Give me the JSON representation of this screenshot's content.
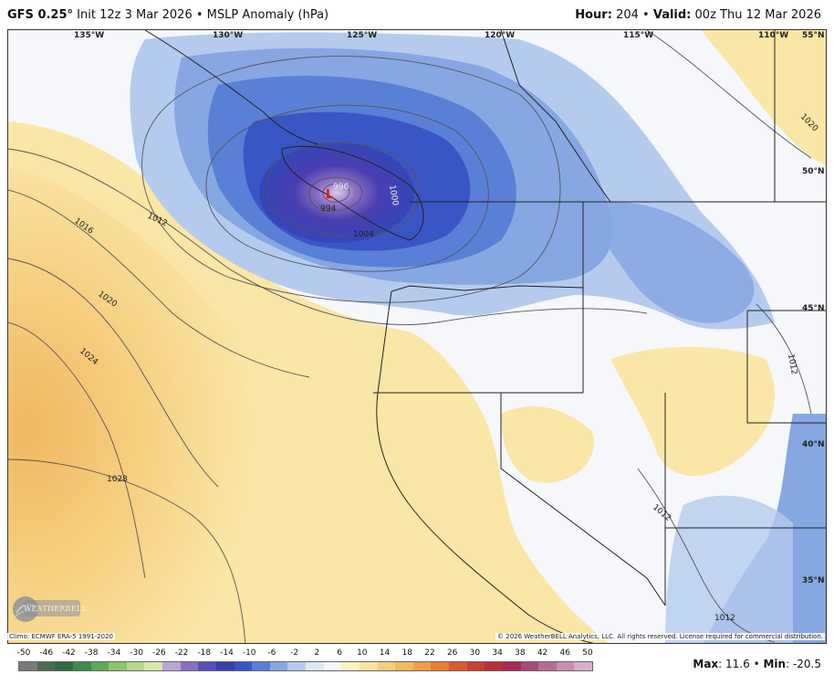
{
  "header": {
    "model": "GFS 0.25°",
    "init": "Init 12z 3 Mar 2026",
    "bullet": "•",
    "product": "MSLP Anomaly (hPa)",
    "hour_label": "Hour:",
    "hour_value": "204",
    "valid_label": "Valid:",
    "valid_value": "00z Thu 12 Mar 2026"
  },
  "map": {
    "lon_labels": [
      "135°W",
      "130°W",
      "125°W",
      "120°W",
      "115°W",
      "110°W"
    ],
    "lat_labels": [
      "55°N",
      "50°N",
      "45°N",
      "40°N",
      "35°N"
    ],
    "isobar_labels": [
      "1016",
      "1012",
      "1020",
      "1024",
      "1028",
      "1004",
      "994",
      "996",
      "1000",
      "1020",
      "1012",
      "1012",
      "1012"
    ],
    "low_marker": "L"
  },
  "credits": {
    "climo": "Climo: ECMWF ERA-5 1991-2020",
    "copyright": "© 2026 WeatherBELL Analytics, LLC. All rights reserved. License required for commercial distribution.",
    "logo_text": "WEATHERBELL"
  },
  "colorbar": {
    "ticks": [
      "-50",
      "-46",
      "-42",
      "-38",
      "-34",
      "-30",
      "-26",
      "-22",
      "-18",
      "-14",
      "-10",
      "-6",
      "-2",
      "2",
      "6",
      "10",
      "14",
      "18",
      "22",
      "26",
      "30",
      "34",
      "38",
      "42",
      "46",
      "50"
    ],
    "colors": [
      "#7a7a7a",
      "#4d6b52",
      "#2f6b3f",
      "#3f8a4a",
      "#5fa85a",
      "#8cc46a",
      "#b7d98a",
      "#d6e8a8",
      "#b9a6d6",
      "#8b6fc4",
      "#5a4fb8",
      "#3a3fa8",
      "#3a55c4",
      "#5a7fd6",
      "#86a7e2",
      "#b4cbee",
      "#dde8f7",
      "#f6f7fb",
      "#fbf3c2",
      "#f8e3a0",
      "#f5cf7e",
      "#f2b862",
      "#ee9e4a",
      "#e57f36",
      "#d85e2c",
      "#c84030",
      "#b6303e",
      "#a52a55",
      "#a8487a",
      "#b86b98",
      "#c98db4",
      "#d8aecf"
    ]
  },
  "stats": {
    "max_label": "Max",
    "max_value": "11.6",
    "min_label": "Min",
    "min_value": "-20.5"
  }
}
